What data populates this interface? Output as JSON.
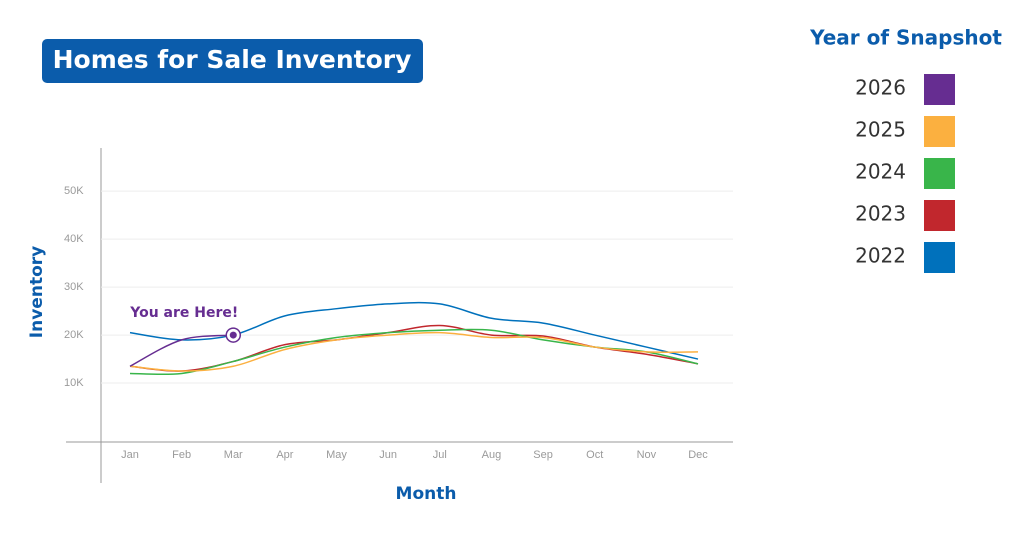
{
  "chart_data": {
    "type": "line",
    "title": "Homes for Sale Inventory",
    "xlabel": "Month",
    "ylabel": "Inventory",
    "legend_title": "Year of Snapshot",
    "annotation": "You are Here!",
    "categories": [
      "Jan",
      "Feb",
      "Mar",
      "Apr",
      "May",
      "Jun",
      "Jul",
      "Aug",
      "Sep",
      "Oct",
      "Nov",
      "Dec"
    ],
    "series": [
      {
        "name": "2026",
        "color": "#662d91",
        "values": [
          13500,
          19000,
          20000,
          null,
          null,
          null,
          null,
          null,
          null,
          null,
          null,
          null
        ]
      },
      {
        "name": "2025",
        "color": "#fbb040",
        "values": [
          13500,
          12500,
          13500,
          17000,
          19000,
          20000,
          20500,
          19500,
          19500,
          17500,
          16500,
          16500
        ]
      },
      {
        "name": "2024",
        "color": "#39b54a",
        "values": [
          12000,
          12000,
          14500,
          17500,
          19500,
          20500,
          21000,
          21000,
          19000,
          17500,
          16500,
          14000
        ]
      },
      {
        "name": "2023",
        "color": "#c1272d",
        "values": [
          13500,
          12500,
          14500,
          18000,
          19000,
          20500,
          22000,
          20000,
          19800,
          17500,
          16000,
          14000
        ]
      },
      {
        "name": "2022",
        "color": "#0071bc",
        "values": [
          20500,
          19000,
          20000,
          24000,
          25500,
          26500,
          26500,
          23500,
          22500,
          20000,
          17500,
          15000
        ]
      }
    ],
    "ylim": [
      -2000,
      59000
    ],
    "yticks": [
      {
        "value": 10000,
        "label": "10K"
      },
      {
        "value": 20000,
        "label": "20K"
      },
      {
        "value": 30000,
        "label": "30K"
      },
      {
        "value": 40000,
        "label": "40K"
      },
      {
        "value": 50000,
        "label": "50K"
      }
    ],
    "grid": true
  }
}
